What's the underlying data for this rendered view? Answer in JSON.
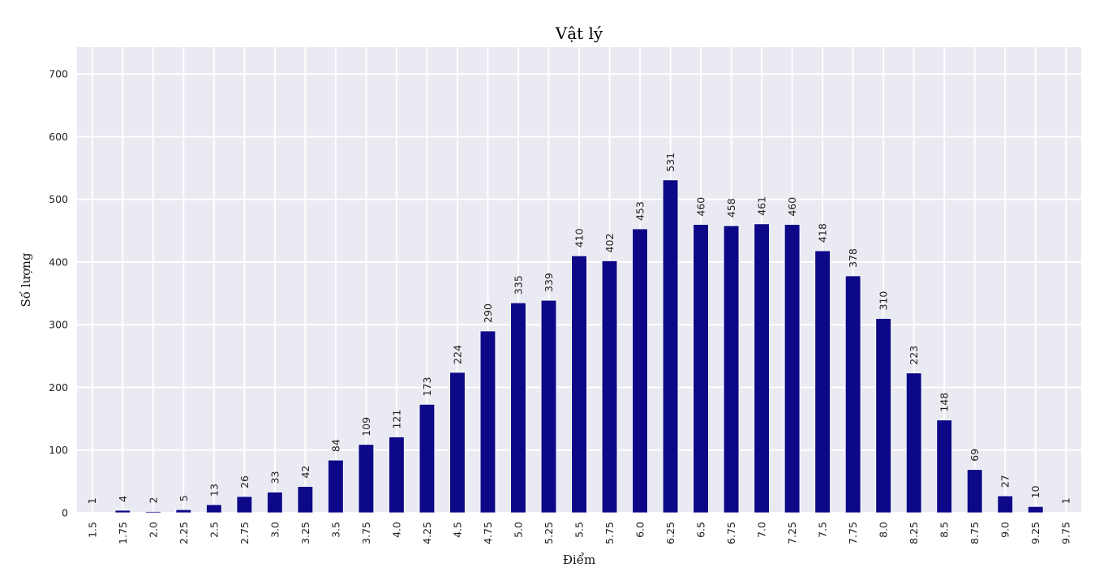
{
  "chart_data": {
    "type": "bar",
    "title": "Vật lý",
    "xlabel": "Điểm",
    "ylabel": "Số lượng",
    "categories": [
      "1.5",
      "1.75",
      "2.0",
      "2.25",
      "2.5",
      "2.75",
      "3.0",
      "3.25",
      "3.5",
      "3.75",
      "4.0",
      "4.25",
      "4.5",
      "4.75",
      "5.0",
      "5.25",
      "5.5",
      "5.75",
      "6.0",
      "6.25",
      "6.5",
      "6.75",
      "7.0",
      "7.25",
      "7.5",
      "7.75",
      "8.0",
      "8.25",
      "8.5",
      "8.75",
      "9.0",
      "9.25",
      "9.75"
    ],
    "values": [
      1,
      4,
      2,
      5,
      13,
      26,
      33,
      42,
      84,
      109,
      121,
      173,
      224,
      290,
      335,
      339,
      410,
      402,
      453,
      531,
      460,
      458,
      461,
      460,
      418,
      378,
      310,
      223,
      148,
      69,
      27,
      10,
      1
    ],
    "ylim": [
      0,
      743
    ],
    "yticks": [
      0,
      100,
      200,
      300,
      400,
      500,
      600,
      700
    ],
    "bar_color": "#0d0888",
    "background_color": "#eaeaf2",
    "grid": true,
    "data_labels": true
  }
}
